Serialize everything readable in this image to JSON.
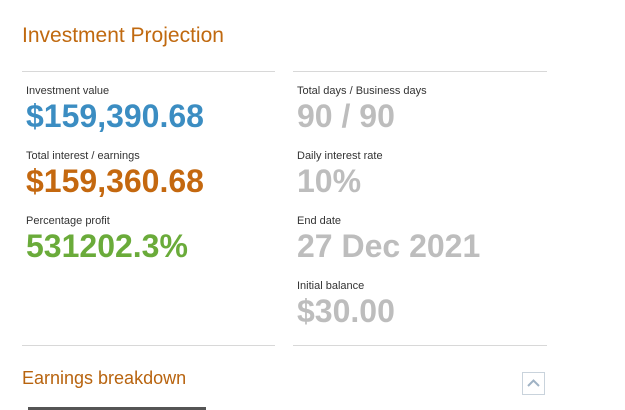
{
  "header": {
    "title": "Investment Projection"
  },
  "left_panel": [
    {
      "label": "Investment value",
      "value": "$159,390.68"
    },
    {
      "label": "Total interest / earnings",
      "value": "$159,360.68"
    },
    {
      "label": "Percentage profit",
      "value": "531202.3%"
    }
  ],
  "right_panel": [
    {
      "label": "Total days / Business days",
      "value": "90 / 90"
    },
    {
      "label": "Daily interest rate",
      "value": "10%"
    },
    {
      "label": "End date",
      "value": "27 Dec 2021"
    },
    {
      "label": "Initial balance",
      "value": "$30.00"
    }
  ],
  "section": {
    "title": "Earnings breakdown"
  }
}
